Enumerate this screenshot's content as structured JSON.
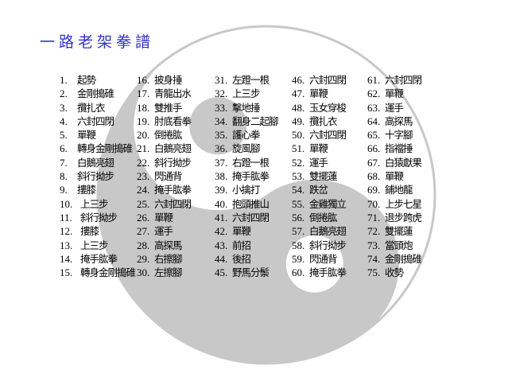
{
  "title": "一路老架拳譜",
  "colors": {
    "title": "#3333cc",
    "background_symbol": "#c8c8c8"
  },
  "background_icon": "taiji-yin-yang",
  "items": [
    {
      "n": "1.",
      "name": "起勢"
    },
    {
      "n": "2.",
      "name": "金剛搗碓"
    },
    {
      "n": "3.",
      "name": "攬扎衣"
    },
    {
      "n": "4.",
      "name": "六封四閉"
    },
    {
      "n": "5.",
      "name": "單鞭"
    },
    {
      "n": "6.",
      "name": "轉身金剛搗碓"
    },
    {
      "n": "7.",
      "name": "白鵝亮翅"
    },
    {
      "n": "8.",
      "name": "斜行拗步"
    },
    {
      "n": "9.",
      "name": "摟膝"
    },
    {
      "n": "10.",
      "name": "上三步"
    },
    {
      "n": "11.",
      "name": "斜行拗步"
    },
    {
      "n": "12.",
      "name": "摟膝"
    },
    {
      "n": "13.",
      "name": "上三步"
    },
    {
      "n": "14.",
      "name": "掩手肱拳"
    },
    {
      "n": "15.",
      "name": "轉身金剛搗碓"
    },
    {
      "n": "16.",
      "name": "披身捶"
    },
    {
      "n": "17.",
      "name": "青龍出水"
    },
    {
      "n": "18.",
      "name": "雙推手"
    },
    {
      "n": "19.",
      "name": "肘底看拳"
    },
    {
      "n": "20.",
      "name": "倒捲肱"
    },
    {
      "n": "21.",
      "name": "白鵝亮翅"
    },
    {
      "n": "22.",
      "name": "斜行拗步"
    },
    {
      "n": "23.",
      "name": "閃通背"
    },
    {
      "n": "24.",
      "name": "掩手肱拳"
    },
    {
      "n": "25.",
      "name": "六封四閉"
    },
    {
      "n": "26.",
      "name": "單鞭"
    },
    {
      "n": "27.",
      "name": "運手"
    },
    {
      "n": "28.",
      "name": "高探馬"
    },
    {
      "n": "29.",
      "name": "右擦腳"
    },
    {
      "n": "30.",
      "name": "左擦腳"
    },
    {
      "n": "31.",
      "name": "左蹬一根"
    },
    {
      "n": "32.",
      "name": "上三步"
    },
    {
      "n": "33.",
      "name": "擊地捶"
    },
    {
      "n": "34.",
      "name": "翻身二起腳"
    },
    {
      "n": "35.",
      "name": "護心拳"
    },
    {
      "n": "36.",
      "name": "旋風腳"
    },
    {
      "n": "37.",
      "name": "右蹬一根"
    },
    {
      "n": "38.",
      "name": "掩手肱拳"
    },
    {
      "n": "39.",
      "name": "小擒打"
    },
    {
      "n": "40.",
      "name": "抱頭推山"
    },
    {
      "n": "41.",
      "name": "六封四閉"
    },
    {
      "n": "42.",
      "name": "單鞭"
    },
    {
      "n": "43.",
      "name": "前招"
    },
    {
      "n": "44.",
      "name": "後招"
    },
    {
      "n": "45.",
      "name": "野馬分鬃"
    },
    {
      "n": "46.",
      "name": "六封四閉"
    },
    {
      "n": "47.",
      "name": "單鞭"
    },
    {
      "n": "48.",
      "name": "玉女穿梭"
    },
    {
      "n": "49.",
      "name": "攬扎衣"
    },
    {
      "n": "50.",
      "name": "六封四閉"
    },
    {
      "n": "51.",
      "name": "單鞭"
    },
    {
      "n": "52.",
      "name": "運手"
    },
    {
      "n": "53.",
      "name": "雙擺蓮"
    },
    {
      "n": "54.",
      "name": "跌岔"
    },
    {
      "n": "55.",
      "name": "金雞獨立"
    },
    {
      "n": "56.",
      "name": "倒捲肱"
    },
    {
      "n": "57.",
      "name": "白鵝亮翅"
    },
    {
      "n": "58.",
      "name": "斜行拗步"
    },
    {
      "n": "59.",
      "name": "閃通背"
    },
    {
      "n": "60.",
      "name": "掩手肱拳"
    },
    {
      "n": "61.",
      "name": "六封四閉"
    },
    {
      "n": "62.",
      "name": "單鞭"
    },
    {
      "n": "63.",
      "name": "運手"
    },
    {
      "n": "64.",
      "name": "高探馬"
    },
    {
      "n": "65.",
      "name": "十字腳"
    },
    {
      "n": "66.",
      "name": "指襠捶"
    },
    {
      "n": "67.",
      "name": "白猿獻果"
    },
    {
      "n": "68.",
      "name": "單鞭"
    },
    {
      "n": "69.",
      "name": "鋪地龍"
    },
    {
      "n": "70.",
      "name": "上步七星"
    },
    {
      "n": "71.",
      "name": "退步跨虎"
    },
    {
      "n": "72.",
      "name": "雙擺蓮"
    },
    {
      "n": "73.",
      "name": "當頭炮"
    },
    {
      "n": "74.",
      "name": "金剛搗碓"
    },
    {
      "n": "75.",
      "name": "收勢"
    }
  ]
}
